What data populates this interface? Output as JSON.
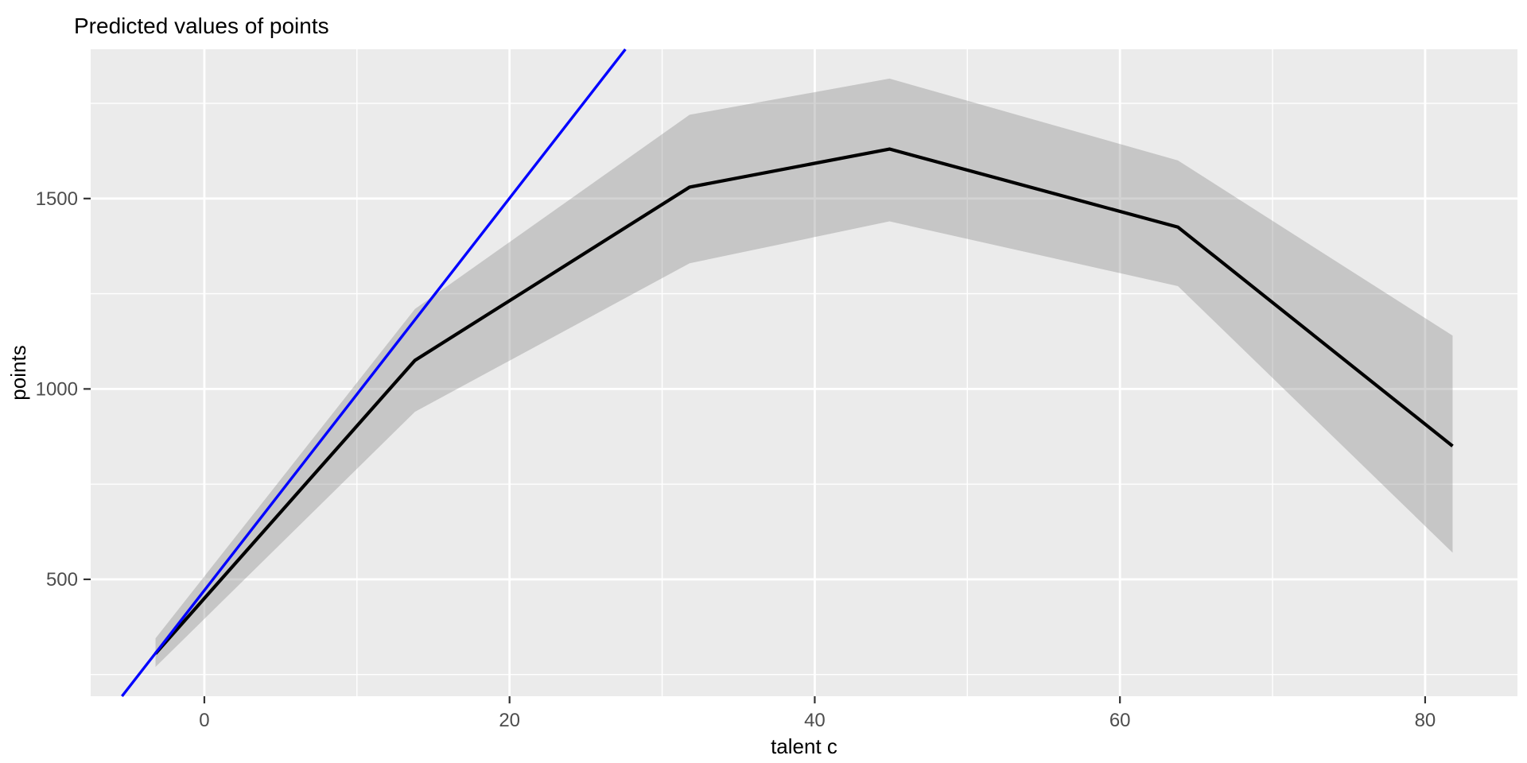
{
  "colors": {
    "panel_background": "#EBEBEB",
    "gridline": "#FFFFFF",
    "ribbon_fill": "rgba(128,128,128,0.35)",
    "prediction_line": "#000000",
    "regression_line": "#0000FF",
    "tick_label": "#4D4D4D",
    "tick_mark": "#333333",
    "title_text": "#000000"
  },
  "chart_data": {
    "type": "line",
    "title": "Predicted values of points",
    "xlabel": "talent c",
    "ylabel": "points",
    "legend": "none",
    "grid": "major-and-minor",
    "xlim": [
      -7.45,
      86.05
    ],
    "ylim": [
      193,
      1892
    ],
    "x_ticks": [
      0,
      20,
      40,
      60,
      80
    ],
    "x_minor_gridlines": [
      10,
      30,
      50,
      70
    ],
    "y_ticks": [
      500,
      1000,
      1500
    ],
    "y_minor_gridlines": [
      250,
      750,
      1250,
      1750
    ],
    "series": [
      {
        "name": "predicted",
        "type": "line",
        "color_key": "prediction_line",
        "x": [
          -3.2,
          13.8,
          31.8,
          44.9,
          63.8,
          81.8
        ],
        "y": [
          305,
          1075,
          1530,
          1630,
          1425,
          850
        ]
      },
      {
        "name": "confidence_interval",
        "type": "ribbon",
        "color_key": "ribbon_fill",
        "x": [
          -3.2,
          13.8,
          31.8,
          44.9,
          63.8,
          81.8
        ],
        "upper": [
          345,
          1210,
          1720,
          1815,
          1600,
          1140
        ],
        "lower": [
          270,
          940,
          1330,
          1440,
          1270,
          570
        ]
      },
      {
        "name": "linear_fit",
        "type": "abline",
        "color_key": "regression_line",
        "slope": 51.5,
        "intercept": 471
      }
    ]
  }
}
